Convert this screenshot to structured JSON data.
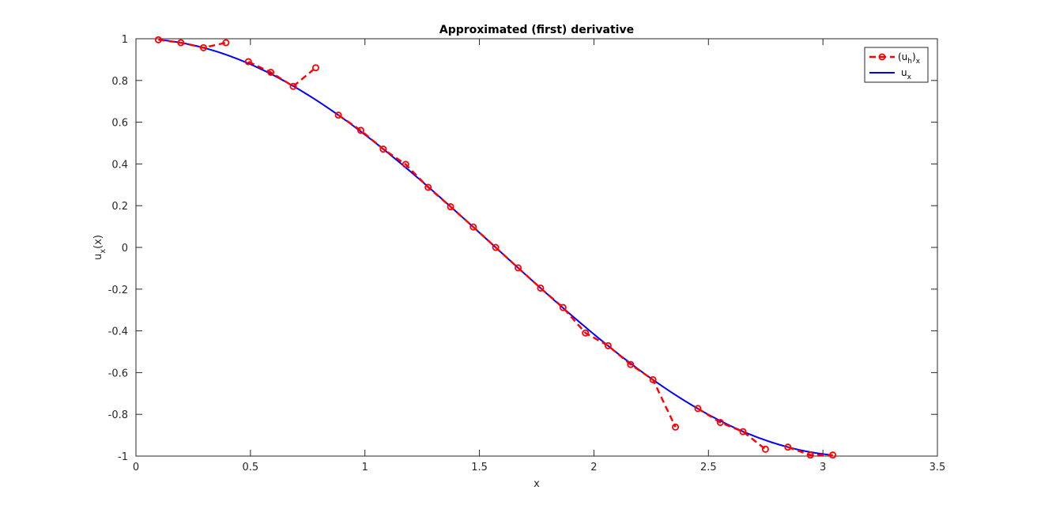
{
  "chart_data": {
    "type": "line",
    "title": "Approximated (first) derivative",
    "xlabel": "x",
    "ylabel": {
      "base": "u",
      "sub": "x",
      "suffix": "(x)"
    },
    "xlim": [
      0,
      3.5
    ],
    "ylim": [
      -1,
      1
    ],
    "xticks": [
      0,
      0.5,
      1,
      1.5,
      2,
      2.5,
      3,
      3.5
    ],
    "xtick_labels": [
      "0",
      "0.5",
      "1",
      "1.5",
      "2",
      "2.5",
      "3",
      "3.5"
    ],
    "yticks": [
      -1,
      -0.8,
      -0.6,
      -0.4,
      -0.2,
      0,
      0.2,
      0.4,
      0.6,
      0.8,
      1
    ],
    "ytick_labels": [
      "-1",
      "-0.8",
      "-0.6",
      "-0.4",
      "-0.2",
      "0",
      "0.2",
      "0.4",
      "0.6",
      "0.8",
      "1"
    ],
    "grid": false,
    "legend_position": "top-right",
    "colors": {
      "approx": "#ff0000",
      "exact": "#0000ff",
      "axes": "#262626"
    },
    "series": [
      {
        "name": {
          "base": "(u",
          "sub": "h",
          "close": ")",
          "sub2": "x"
        },
        "style": "dashed-circle-markers",
        "segments": [
          [
            [
              0.098,
              0.995
            ],
            [
              0.196,
              0.981
            ],
            [
              0.295,
              0.957
            ],
            [
              0.393,
              0.981
            ]
          ],
          [
            [
              0.491,
              0.89
            ],
            [
              0.589,
              0.839
            ],
            [
              0.687,
              0.772
            ],
            [
              0.785,
              0.861
            ]
          ],
          [
            [
              0.884,
              0.634
            ],
            [
              0.982,
              0.561
            ],
            [
              1.08,
              0.471
            ],
            [
              1.178,
              0.398
            ],
            [
              1.276,
              0.288
            ],
            [
              1.374,
              0.195
            ],
            [
              1.473,
              0.098
            ],
            [
              1.571,
              0.0
            ],
            [
              1.669,
              -0.098
            ],
            [
              1.767,
              -0.195
            ],
            [
              1.865,
              -0.288
            ],
            [
              1.963,
              -0.41
            ],
            [
              2.062,
              -0.471
            ],
            [
              2.16,
              -0.561
            ],
            [
              2.258,
              -0.634
            ],
            [
              2.356,
              -0.861
            ]
          ],
          [
            [
              2.454,
              -0.772
            ],
            [
              2.552,
              -0.839
            ],
            [
              2.651,
              -0.883
            ],
            [
              2.749,
              -0.967
            ]
          ],
          [
            [
              2.847,
              -0.957
            ],
            [
              2.945,
              -0.995
            ],
            [
              3.043,
              -0.995
            ]
          ]
        ]
      },
      {
        "name": {
          "base": "u",
          "sub": "x"
        },
        "style": "solid",
        "x_range": [
          0.098,
          3.043
        ],
        "function": "cos(x)"
      }
    ]
  }
}
